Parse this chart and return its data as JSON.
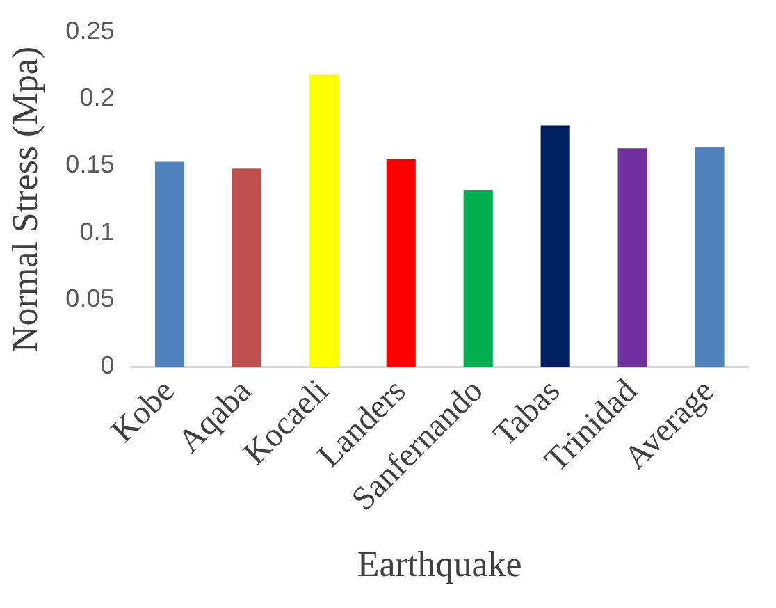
{
  "chart_data": {
    "type": "bar",
    "xlabel": "Earthquake",
    "ylabel": "Normal Stress (Mpa)",
    "categories": [
      "Kobe",
      "Aqaba",
      "Kocaeli",
      "Landers",
      "Sanfernando",
      "Tabas",
      "Trinidad",
      "Average"
    ],
    "values": [
      0.153,
      0.148,
      0.218,
      0.155,
      0.132,
      0.18,
      0.163,
      0.164
    ],
    "colors": [
      "#4f81bd",
      "#c0504d",
      "#ffff00",
      "#ff0000",
      "#00b050",
      "#002060",
      "#7030a0",
      "#4f81bd"
    ],
    "ylim": [
      0,
      0.25
    ],
    "yticks": [
      0,
      0.05,
      0.1,
      0.15,
      0.2,
      0.25
    ],
    "grid": false,
    "legend": false
  }
}
